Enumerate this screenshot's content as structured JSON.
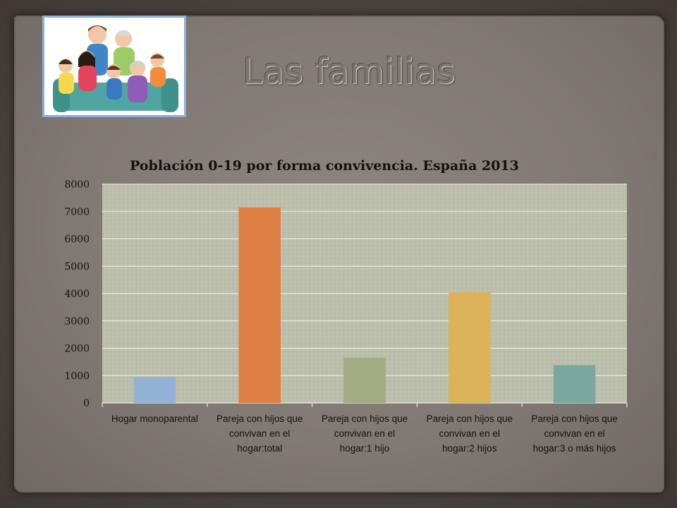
{
  "slide": {
    "title": "Las familias",
    "image_label": "family-illustration"
  },
  "chart_data": {
    "type": "bar",
    "title": "Población 0-19 por forma convivencia. España 2013",
    "categories": [
      [
        "Hogar monoparental"
      ],
      [
        "Pareja con hijos que",
        "convivan en el",
        "hogar:total"
      ],
      [
        "Pareja con hijos que",
        "convivan en el",
        "hogar:1 hijo"
      ],
      [
        "Pareja con hijos que",
        "convivan en el",
        "hogar:2 hijos"
      ],
      [
        "Pareja con hijos que",
        "convivan en el",
        "hogar:3 o más hijos"
      ]
    ],
    "values": [
      950,
      7150,
      1650,
      4050,
      1380
    ],
    "colors": [
      "#93b2d3",
      "#e07f45",
      "#a3ab82",
      "#dcb35a",
      "#7aa89e"
    ],
    "ylim": [
      0,
      8000
    ],
    "yticks": [
      0,
      1000,
      2000,
      3000,
      4000,
      5000,
      6000,
      7000,
      8000
    ],
    "grid": true,
    "xlabel": "",
    "ylabel": ""
  }
}
